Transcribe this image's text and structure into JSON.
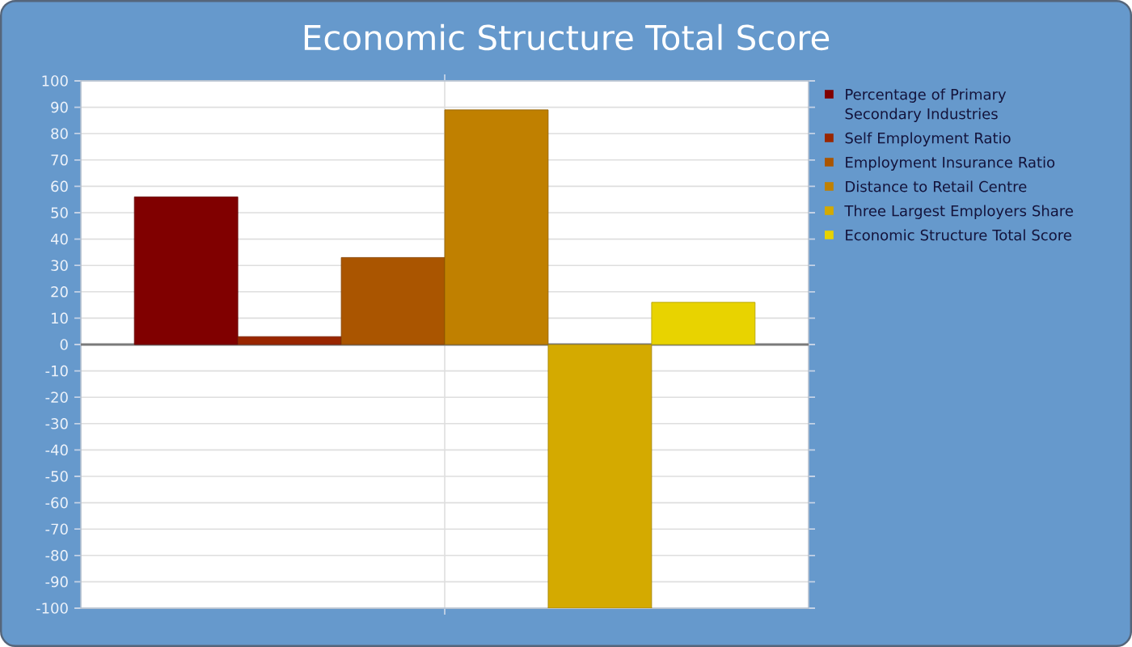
{
  "chart_data": {
    "type": "bar",
    "title": "Economic Structure Total Score",
    "categories": [
      null
    ],
    "series": [
      {
        "name": "Percentage of Primary Secondary Industries",
        "color": "#800000",
        "values": [
          56
        ]
      },
      {
        "name": "Self Employment Ratio",
        "color": "#992600",
        "values": [
          3
        ]
      },
      {
        "name": "Employment Insurance Ratio",
        "color": "#AA5500",
        "values": [
          33
        ]
      },
      {
        "name": "Distance to Retail Centre",
        "color": "#C08000",
        "values": [
          89
        ]
      },
      {
        "name": "Three Largest Employers Share",
        "color": "#D4AA00",
        "values": [
          -100
        ]
      },
      {
        "name": "Economic Structure Total Score",
        "color": "#E8D300",
        "values": [
          16
        ]
      }
    ],
    "ylim": [
      -100,
      100
    ],
    "yticks": [
      -100,
      -90,
      -80,
      -70,
      -60,
      -50,
      -40,
      -30,
      -20,
      -10,
      0,
      10,
      20,
      30,
      40,
      50,
      60,
      70,
      80,
      90,
      100
    ],
    "grid": true,
    "legend": "right"
  }
}
